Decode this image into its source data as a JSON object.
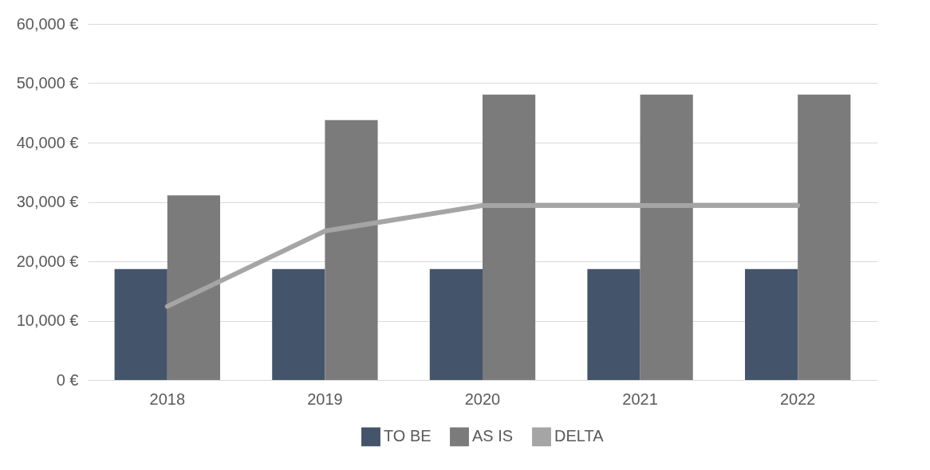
{
  "chart_data": {
    "type": "bar",
    "categories": [
      "2018",
      "2019",
      "2020",
      "2021",
      "2022"
    ],
    "series": [
      {
        "name": "TO BE",
        "color": "#44546a",
        "values": [
          18700,
          18700,
          18700,
          18700,
          18700
        ]
      },
      {
        "name": "AS IS",
        "color": "#7b7b7b",
        "values": [
          31100,
          43800,
          48100,
          48100,
          48100
        ]
      },
      {
        "name": "DELTA",
        "color": "#a5a5a5",
        "type": "line",
        "values": [
          12400,
          25100,
          29400,
          29400,
          29400
        ]
      }
    ],
    "ylim": [
      0,
      60000
    ],
    "yticks": [
      {
        "value": 0,
        "label": "0 €"
      },
      {
        "value": 10000,
        "label": "10,000 €"
      },
      {
        "value": 20000,
        "label": "20,000 €"
      },
      {
        "value": 30000,
        "label": "30,000 €"
      },
      {
        "value": 40000,
        "label": "40,000 €"
      },
      {
        "value": 50000,
        "label": "50,000 €"
      },
      {
        "value": 60000,
        "label": "60,000 €"
      }
    ],
    "grid": "y",
    "legend": "bottom"
  }
}
